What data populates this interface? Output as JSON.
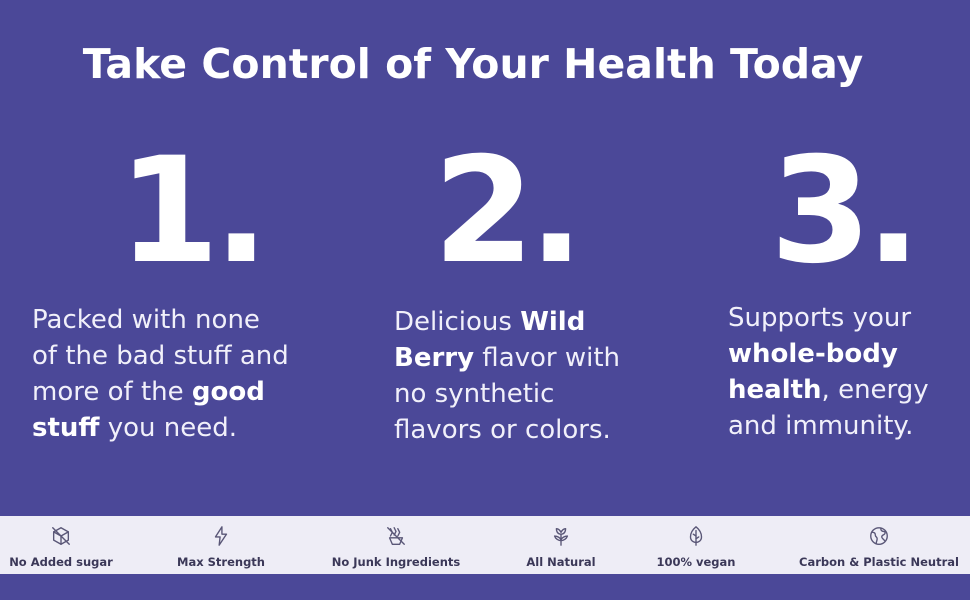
{
  "headline": "Take Control of Your Health Today",
  "steps": [
    {
      "number": "1.",
      "lines": [
        [
          {
            "text": "Packed with none",
            "bold": false
          }
        ],
        [
          {
            "text": "of the bad stuff and",
            "bold": false
          }
        ],
        [
          {
            "text": "more of the ",
            "bold": false
          },
          {
            "text": "good",
            "bold": true
          }
        ],
        [
          {
            "text": "stuff",
            "bold": true
          },
          {
            "text": " you need.",
            "bold": false
          }
        ]
      ]
    },
    {
      "number": "2.",
      "lines": [
        [
          {
            "text": "Delicious ",
            "bold": false
          },
          {
            "text": "Wild",
            "bold": true
          }
        ],
        [
          {
            "text": "Berry",
            "bold": true
          },
          {
            "text": " flavor with",
            "bold": false
          }
        ],
        [
          {
            "text": "no synthetic",
            "bold": false
          }
        ],
        [
          {
            "text": "flavors or colors.",
            "bold": false
          }
        ]
      ]
    },
    {
      "number": "3.",
      "lines": [
        [
          {
            "text": "Supports your",
            "bold": false
          }
        ],
        [
          {
            "text": "whole-body",
            "bold": true
          }
        ],
        [
          {
            "text": "health",
            "bold": true
          },
          {
            "text": ", energy",
            "bold": false
          }
        ],
        [
          {
            "text": "and immunity.",
            "bold": false
          }
        ]
      ]
    }
  ],
  "features": [
    {
      "label": "No Added sugar",
      "icon": "no-sugar-cube-icon"
    },
    {
      "label": "Max Strength",
      "icon": "lightning-bolt-icon"
    },
    {
      "label": "No Junk Ingredients",
      "icon": "no-junk-icon"
    },
    {
      "label": "All Natural",
      "icon": "flower-leaf-icon"
    },
    {
      "label": "100% vegan",
      "icon": "leaf-icon"
    },
    {
      "label": "Carbon & Plastic Neutral",
      "icon": "globe-icon"
    }
  ],
  "colors": {
    "background": "#4b4898",
    "feature_bar": "#eeedf6",
    "feature_text": "#3b3858"
  }
}
